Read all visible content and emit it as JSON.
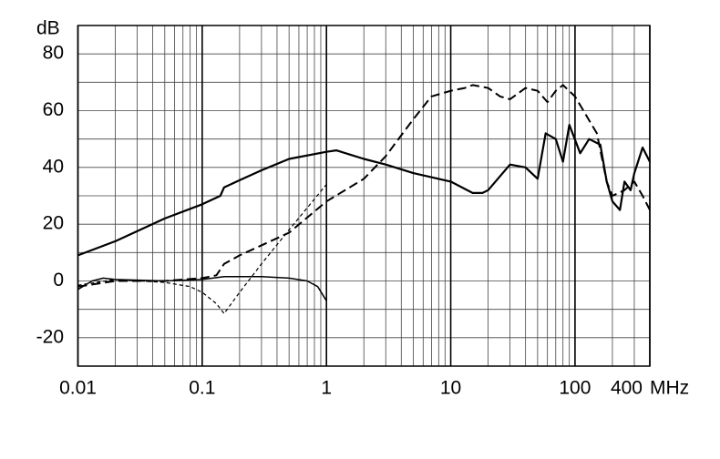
{
  "chart_data": {
    "type": "line",
    "x_log": true,
    "y_label": "dB",
    "x_label": "MHz",
    "xlim": [
      0.01,
      400
    ],
    "xticks": [
      0.01,
      0.1,
      1,
      10,
      100,
      400
    ],
    "xgrid": [
      0.02,
      0.03,
      0.04,
      0.05,
      0.06,
      0.07,
      0.08,
      0.09,
      0.2,
      0.3,
      0.4,
      0.5,
      0.6,
      0.7,
      0.8,
      0.9,
      2,
      3,
      4,
      5,
      6,
      7,
      8,
      9,
      20,
      30,
      40,
      50,
      60,
      70,
      80,
      90,
      200,
      300
    ],
    "ylim": [
      -30,
      90
    ],
    "yticks": [
      -20,
      0,
      20,
      40,
      60,
      80
    ],
    "ygrid": [
      -20,
      -10,
      0,
      10,
      20,
      30,
      40,
      50,
      60,
      70,
      80
    ],
    "series": [
      {
        "color": "#000000",
        "style": "solid",
        "width": 2.2,
        "x": [
          0.01,
          0.02,
          0.05,
          0.1,
          0.14,
          0.15,
          0.2,
          0.3,
          0.5,
          1,
          1.2,
          2,
          3,
          5,
          10,
          15,
          18,
          20,
          30,
          40,
          50,
          58,
          70,
          80,
          90,
          110,
          130,
          160,
          180,
          200,
          230,
          250,
          280,
          300,
          350,
          400
        ],
        "values": [
          9,
          14,
          22,
          27,
          30,
          33,
          35.5,
          39,
          43,
          45.5,
          46,
          43,
          41,
          38,
          35,
          31,
          31,
          32,
          41,
          40,
          36,
          52,
          50,
          42,
          55,
          45,
          50,
          48,
          35,
          28,
          25,
          35,
          32,
          38,
          47,
          42
        ]
      },
      {
        "color": "#000000",
        "style": "solid",
        "width": 1.5,
        "x": [
          0.01,
          0.013,
          0.016,
          0.02,
          0.05,
          0.1,
          0.15,
          0.3,
          0.5,
          0.7,
          0.85,
          1
        ],
        "values": [
          -3,
          0,
          1,
          0.5,
          0,
          0.5,
          1.5,
          1.5,
          1,
          0,
          -2,
          -7
        ]
      },
      {
        "color": "#000000",
        "style": "dotted",
        "width": 1.2,
        "x": [
          0.01,
          0.02,
          0.05,
          0.08,
          0.1,
          0.13,
          0.15,
          0.2,
          0.3,
          0.5,
          1
        ],
        "values": [
          -1.5,
          0.5,
          -0.5,
          -2,
          -4,
          -8,
          -11.5,
          -4,
          6,
          18,
          34
        ]
      },
      {
        "color": "#000000",
        "style": "dashed",
        "width": 2,
        "x": [
          0.01,
          0.02,
          0.05,
          0.1,
          0.13,
          0.15,
          0.2,
          0.5,
          1,
          2,
          3,
          5,
          7,
          10,
          13,
          15,
          20,
          25,
          30,
          40,
          50,
          60,
          70,
          80,
          100,
          150,
          180,
          200,
          250,
          300,
          350,
          400
        ],
        "values": [
          -2,
          0,
          0,
          1,
          2,
          6,
          9,
          17,
          28,
          36,
          44,
          57,
          65,
          67,
          68,
          69,
          68,
          65,
          64,
          68,
          67,
          63,
          67,
          69,
          65,
          52,
          35,
          30,
          32,
          35,
          30,
          25
        ]
      }
    ]
  }
}
